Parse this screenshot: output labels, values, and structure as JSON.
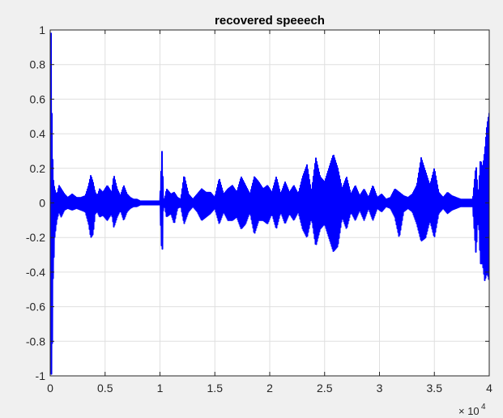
{
  "chart_data": {
    "type": "line",
    "title": "recovered speeech",
    "xlabel": "",
    "ylabel": "",
    "xlim": [
      0,
      40000
    ],
    "ylim": [
      -1,
      1
    ],
    "x_ticks": [
      0,
      5000,
      10000,
      15000,
      20000,
      25000,
      30000,
      35000,
      40000
    ],
    "x_tick_labels": [
      "0",
      "0.5",
      "1",
      "1.5",
      "2",
      "2.5",
      "3",
      "3.5",
      "4"
    ],
    "x_exponent_label": "× 10",
    "x_exponent_power": "4",
    "y_ticks": [
      -1,
      -0.8,
      -0.6,
      -0.4,
      -0.2,
      0,
      0.2,
      0.4,
      0.6,
      0.8,
      1
    ],
    "y_tick_labels": [
      "-1",
      "-0.8",
      "-0.6",
      "-0.4",
      "-0.2",
      "0",
      "0.2",
      "0.4",
      "0.6",
      "0.8",
      "1"
    ],
    "grid": true,
    "line_color": "#0000ff",
    "series": [
      {
        "envelope_x": [
          0,
          80,
          150,
          250,
          400,
          600,
          800,
          1000,
          1300,
          1600,
          2000,
          2400,
          2800,
          3200,
          3500,
          3700,
          3900,
          4100,
          4300,
          4500,
          4800,
          5200,
          5600,
          5800,
          6100,
          6400,
          6700,
          7000,
          7300,
          7600,
          7900,
          8200,
          8500,
          9000,
          9500,
          10000,
          10200,
          10300,
          10400,
          10600,
          11000,
          11300,
          11600,
          11900,
          12200,
          12600,
          13000,
          13400,
          13800,
          14200,
          14600,
          15000,
          15400,
          15800,
          16200,
          16600,
          17000,
          17400,
          17800,
          18200,
          18600,
          19000,
          19400,
          19800,
          20200,
          20600,
          21000,
          21400,
          21800,
          22200,
          22600,
          23000,
          23400,
          23800,
          24200,
          24600,
          25000,
          25400,
          25800,
          26200,
          26600,
          27000,
          27400,
          27800,
          28200,
          28600,
          29000,
          29400,
          29800,
          30200,
          30600,
          31000,
          31400,
          31800,
          32200,
          32600,
          33000,
          33400,
          33800,
          34200,
          34600,
          35000,
          35400,
          35800,
          36200,
          36600,
          37000,
          37400,
          37800,
          38200,
          38500,
          38800,
          39000,
          39200,
          39400,
          39600,
          39800,
          40000
        ],
        "envelope_upper": [
          0.98,
          0.98,
          0.5,
          0.15,
          0.08,
          0.04,
          0.1,
          0.08,
          0.05,
          0.03,
          0.05,
          0.03,
          0.03,
          0.04,
          0.1,
          0.16,
          0.12,
          0.06,
          0.04,
          0.08,
          0.06,
          0.1,
          0.06,
          0.16,
          0.08,
          0.04,
          0.1,
          0.05,
          0.03,
          0.02,
          0.02,
          0.01,
          0.01,
          0.01,
          0.01,
          0.01,
          0.32,
          0.03,
          0.01,
          0.08,
          0.05,
          0.06,
          0.03,
          0.02,
          0.16,
          0.05,
          0.02,
          0.05,
          0.08,
          0.06,
          0.06,
          0.03,
          0.14,
          0.05,
          0.08,
          0.1,
          0.06,
          0.15,
          0.1,
          0.05,
          0.15,
          0.12,
          0.08,
          0.1,
          0.06,
          0.15,
          0.05,
          0.12,
          0.06,
          0.1,
          0.05,
          0.15,
          0.22,
          0.06,
          0.26,
          0.15,
          0.12,
          0.2,
          0.28,
          0.2,
          0.08,
          0.15,
          0.05,
          0.1,
          0.04,
          0.08,
          0.03,
          0.1,
          0.03,
          0.05,
          0.02,
          0.03,
          0.08,
          0.06,
          0.04,
          0.03,
          0.05,
          0.1,
          0.26,
          0.18,
          0.1,
          0.2,
          0.06,
          0.03,
          0.06,
          0.04,
          0.03,
          0.02,
          0.02,
          0.02,
          0.02,
          0.22,
          0.03,
          0.25,
          0.2,
          0.3,
          0.45,
          0.52,
          0.38,
          0.2
        ],
        "envelope_lower": [
          -0.98,
          -0.98,
          -1.0,
          -0.45,
          -0.2,
          -0.1,
          -0.05,
          -0.08,
          -0.04,
          -0.03,
          -0.04,
          -0.03,
          -0.04,
          -0.05,
          -0.12,
          -0.2,
          -0.18,
          -0.06,
          -0.05,
          -0.08,
          -0.07,
          -0.1,
          -0.06,
          -0.14,
          -0.08,
          -0.04,
          -0.1,
          -0.05,
          -0.03,
          -0.02,
          -0.02,
          -0.01,
          -0.01,
          -0.01,
          -0.01,
          -0.01,
          -0.33,
          -0.03,
          -0.01,
          -0.08,
          -0.06,
          -0.12,
          -0.03,
          -0.02,
          -0.12,
          -0.05,
          -0.02,
          -0.05,
          -0.1,
          -0.08,
          -0.06,
          -0.03,
          -0.12,
          -0.05,
          -0.1,
          -0.1,
          -0.08,
          -0.15,
          -0.12,
          -0.05,
          -0.18,
          -0.1,
          -0.1,
          -0.12,
          -0.06,
          -0.15,
          -0.05,
          -0.12,
          -0.06,
          -0.1,
          -0.05,
          -0.15,
          -0.2,
          -0.08,
          -0.25,
          -0.15,
          -0.12,
          -0.2,
          -0.28,
          -0.25,
          -0.08,
          -0.15,
          -0.05,
          -0.1,
          -0.04,
          -0.1,
          -0.03,
          -0.1,
          -0.03,
          -0.05,
          -0.02,
          -0.03,
          -0.08,
          -0.2,
          -0.05,
          -0.03,
          -0.05,
          -0.12,
          -0.22,
          -0.2,
          -0.1,
          -0.2,
          -0.06,
          -0.03,
          -0.06,
          -0.04,
          -0.03,
          -0.02,
          -0.02,
          -0.02,
          -0.02,
          -0.3,
          -0.03,
          -0.35,
          -0.35,
          -0.45,
          -0.4,
          -0.45,
          -0.3,
          -0.2
        ]
      }
    ]
  }
}
